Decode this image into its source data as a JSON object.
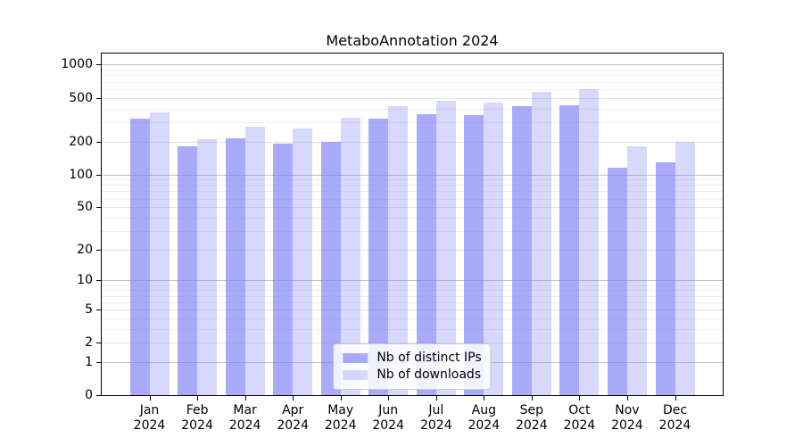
{
  "figure": {
    "background": "#ffffff"
  },
  "chart_data": {
    "type": "bar",
    "title": "MetaboAnnotation 2024",
    "categories": [
      [
        "Jan",
        "2024"
      ],
      [
        "Feb",
        "2024"
      ],
      [
        "Mar",
        "2024"
      ],
      [
        "Apr",
        "2024"
      ],
      [
        "May",
        "2024"
      ],
      [
        "Jun",
        "2024"
      ],
      [
        "Jul",
        "2024"
      ],
      [
        "Aug",
        "2024"
      ],
      [
        "Sep",
        "2024"
      ],
      [
        "Oct",
        "2024"
      ],
      [
        "Nov",
        "2024"
      ],
      [
        "Dec",
        "2024"
      ]
    ],
    "series": [
      {
        "key": "ips",
        "name": "Nb of distinct IPs",
        "color": "rgba(125,125,248,0.65)",
        "values": [
          325,
          180,
          215,
          190,
          200,
          320,
          355,
          350,
          420,
          430,
          115,
          130
        ]
      },
      {
        "key": "downloads",
        "name": "Nb of downloads",
        "color": "rgba(125,125,248,0.30)",
        "values": [
          370,
          210,
          275,
          265,
          330,
          420,
          465,
          450,
          570,
          600,
          180,
          200
        ]
      }
    ],
    "yscale": "log1p",
    "ylim": [
      0,
      1260
    ],
    "y_ticks": [
      0,
      1,
      2,
      5,
      10,
      20,
      50,
      100,
      200,
      500,
      1000
    ],
    "y_major_gridlines": [
      1,
      10,
      100,
      1000
    ],
    "y_mid_gridlines": [
      2,
      5,
      20,
      50,
      200,
      500
    ],
    "y_minor_gridlines": [
      3,
      4,
      6,
      7,
      8,
      9,
      30,
      40,
      60,
      70,
      80,
      90,
      300,
      400,
      600,
      700,
      800,
      900
    ],
    "xlabel": "",
    "ylabel": "",
    "grid": true,
    "legend_position": "lower center"
  },
  "colors": {
    "axis": "#000000",
    "grid_major": "#c3c3c3",
    "grid_mid": "#e2e2e2",
    "grid_minor": "#eeeeee",
    "legend_border": "#cccccc",
    "legend_background": "rgba(255,255,255,0.85)",
    "text": "#000000"
  }
}
